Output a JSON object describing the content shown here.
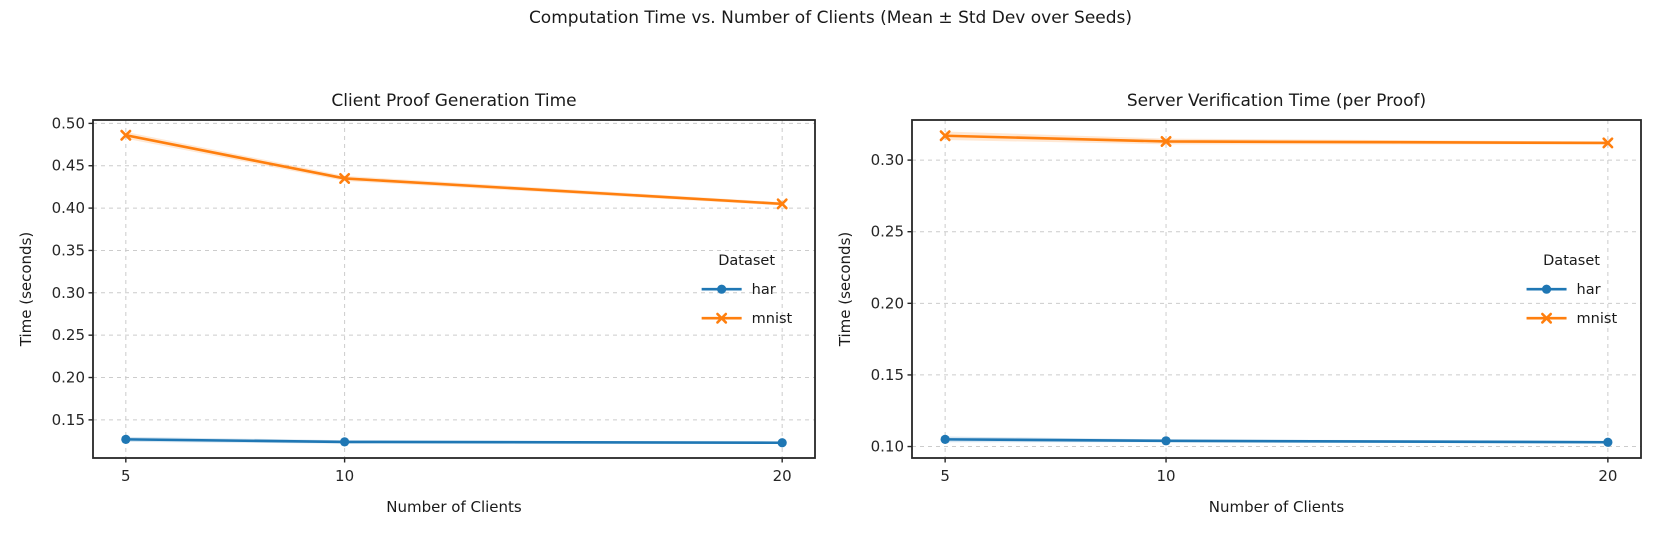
{
  "figure": {
    "title": "Computation Time vs. Number of Clients (Mean ± Std Dev over Seeds)"
  },
  "colors": {
    "grid": "#cccccc",
    "spine": "#262626",
    "text": "#1a1a1a"
  },
  "chart_data": [
    {
      "type": "line",
      "title": "Client Proof Generation Time",
      "xlabel": "Number of Clients",
      "ylabel": "Time (seconds)",
      "legend_title": "Dataset",
      "legend_position": "center right",
      "grid": "dashed",
      "x": [
        5,
        10,
        20
      ],
      "xticks": [
        5,
        10,
        20
      ],
      "xlim": [
        4.25,
        20.75
      ],
      "yticks": [
        0.15,
        0.2,
        0.25,
        0.3,
        0.35,
        0.4,
        0.45,
        0.5
      ],
      "ylim": [
        0.105,
        0.504
      ],
      "series": [
        {
          "name": "har",
          "color": "#1f77b4",
          "marker": "circle",
          "values": [
            0.127,
            0.124,
            0.123
          ],
          "std": [
            0.003,
            0.002,
            0.001
          ]
        },
        {
          "name": "mnist",
          "color": "#ff7f0e",
          "marker": "x",
          "values": [
            0.486,
            0.435,
            0.405
          ],
          "std": [
            0.004,
            0.003,
            0.002
          ]
        }
      ]
    },
    {
      "type": "line",
      "title": "Server Verification Time (per Proof)",
      "xlabel": "Number of Clients",
      "ylabel": "Time (seconds)",
      "legend_title": "Dataset",
      "legend_position": "center right",
      "grid": "dashed",
      "x": [
        5,
        10,
        20
      ],
      "xticks": [
        5,
        10,
        20
      ],
      "xlim": [
        4.25,
        20.75
      ],
      "yticks": [
        0.1,
        0.15,
        0.2,
        0.25,
        0.3
      ],
      "ylim": [
        0.092,
        0.328
      ],
      "series": [
        {
          "name": "har",
          "color": "#1f77b4",
          "marker": "circle",
          "values": [
            0.105,
            0.104,
            0.103
          ],
          "std": [
            0.002,
            0.001,
            0.001
          ]
        },
        {
          "name": "mnist",
          "color": "#ff7f0e",
          "marker": "x",
          "values": [
            0.317,
            0.313,
            0.312
          ],
          "std": [
            0.003,
            0.002,
            0.001
          ]
        }
      ]
    }
  ]
}
